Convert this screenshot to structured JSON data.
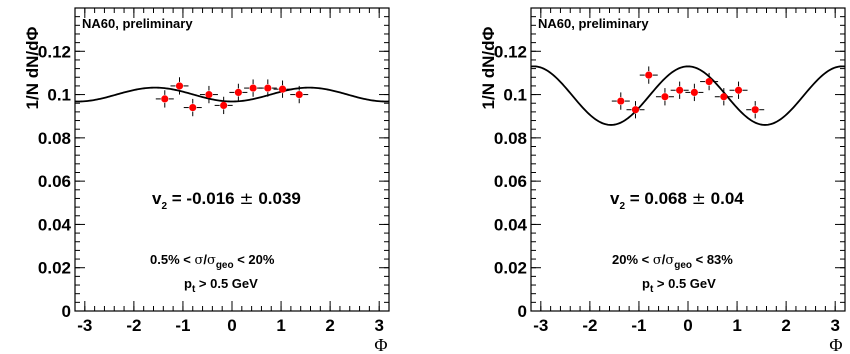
{
  "chart_data": [
    {
      "type": "scatter",
      "label": "NA60, preliminary",
      "ylabel": "1/N dN/dΦ",
      "xlabel": "Φ",
      "xlim": [
        -3.2,
        3.2
      ],
      "ylim": [
        0,
        0.14
      ],
      "xticks": [
        "-3",
        "-2",
        "-1",
        "0",
        "1",
        "2",
        "3"
      ],
      "yticks": [
        "0",
        "0.02",
        "0.04",
        "0.06",
        "0.08",
        "0.1",
        "0.12"
      ],
      "v2": {
        "prefix": "v",
        "sub": "2",
        "value": " = -0.016 ",
        "pm": "±",
        "error": " 0.039"
      },
      "cut1": {
        "a": "0.5% < ",
        "sigma": "σ",
        "slash": "/",
        "sigma2": "σ",
        "sub": "geo",
        "b": " < 20%"
      },
      "cut2": {
        "p": "p",
        "sub": "t",
        "rest": " > 0.5 GeV"
      },
      "points": [
        {
          "x": -1.37,
          "y": 0.098,
          "err": 0.004
        },
        {
          "x": -1.07,
          "y": 0.104,
          "err": 0.004
        },
        {
          "x": -0.8,
          "y": 0.094,
          "err": 0.004
        },
        {
          "x": -0.47,
          "y": 0.1,
          "err": 0.004
        },
        {
          "x": -0.17,
          "y": 0.095,
          "err": 0.004
        },
        {
          "x": 0.13,
          "y": 0.101,
          "err": 0.004
        },
        {
          "x": 0.43,
          "y": 0.103,
          "err": 0.004
        },
        {
          "x": 0.73,
          "y": 0.103,
          "err": 0.004
        },
        {
          "x": 1.03,
          "y": 0.1025,
          "err": 0.004
        },
        {
          "x": 1.37,
          "y": 0.1,
          "err": 0.004
        }
      ],
      "fit": {
        "A": 0.1,
        "v2": -0.016
      }
    },
    {
      "type": "scatter",
      "label": "NA60, preliminary",
      "ylabel": "1/N dN/dΦ",
      "xlabel": "Φ",
      "xlim": [
        -3.2,
        3.2
      ],
      "ylim": [
        0,
        0.14
      ],
      "xticks": [
        "-3",
        "-2",
        "-1",
        "0",
        "1",
        "2",
        "3"
      ],
      "yticks": [
        "0",
        "0.02",
        "0.04",
        "0.06",
        "0.08",
        "0.1",
        "0.12"
      ],
      "v2": {
        "prefix": "v",
        "sub": "2",
        "value": " = 0.068 ",
        "pm": "±",
        "error": " 0.04"
      },
      "cut1": {
        "a": "20% < ",
        "sigma": "σ",
        "slash": "/",
        "sigma2": "σ",
        "sub": "geo",
        "b": " < 83%"
      },
      "cut2": {
        "p": "p",
        "sub": "t",
        "rest": " > 0.5 GeV"
      },
      "points": [
        {
          "x": -1.37,
          "y": 0.097,
          "err": 0.004
        },
        {
          "x": -1.07,
          "y": 0.093,
          "err": 0.004
        },
        {
          "x": -0.8,
          "y": 0.109,
          "err": 0.004
        },
        {
          "x": -0.47,
          "y": 0.099,
          "err": 0.004
        },
        {
          "x": -0.17,
          "y": 0.102,
          "err": 0.004
        },
        {
          "x": 0.13,
          "y": 0.101,
          "err": 0.004
        },
        {
          "x": 0.43,
          "y": 0.106,
          "err": 0.004
        },
        {
          "x": 0.73,
          "y": 0.099,
          "err": 0.004
        },
        {
          "x": 1.03,
          "y": 0.102,
          "err": 0.004
        },
        {
          "x": 1.37,
          "y": 0.093,
          "err": 0.004
        }
      ],
      "fit": {
        "A": 0.0995,
        "v2": 0.068
      }
    }
  ]
}
